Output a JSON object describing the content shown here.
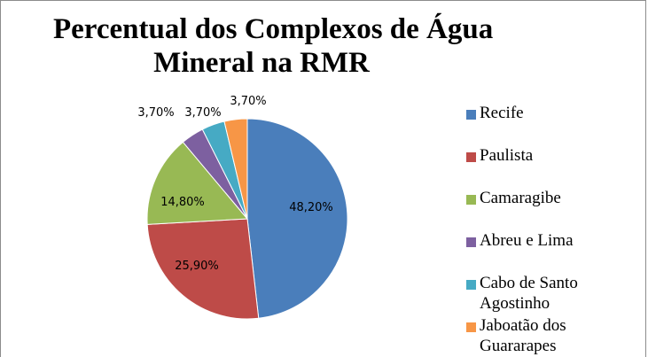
{
  "chart_data": {
    "type": "pie",
    "title": "Percentual dos Complexos de Água Mineral na RMR",
    "title_lines": [
      "Percentual dos Complexos de Água",
      "Mineral na RMR"
    ],
    "categories": [
      "Recife",
      "Paulista",
      "Camaragibe",
      "Abreu e Lima",
      "Cabo de Santo Agostinho",
      "Jaboatão dos Guararapes"
    ],
    "legend_lines": [
      [
        "Recife"
      ],
      [
        "Paulista"
      ],
      [
        "Camaragibe"
      ],
      [
        "Abreu e Lima"
      ],
      [
        "Cabo de Santo",
        "Agostinho"
      ],
      [
        "Jaboatão dos",
        "Guararapes"
      ]
    ],
    "values": [
      48.2,
      25.9,
      14.8,
      3.7,
      3.7,
      3.7
    ],
    "data_labels": [
      "48,20%",
      "25,90%",
      "14,80%",
      "3,70%",
      "3,70%",
      "3,70%"
    ],
    "colors": [
      "#4a7ebb",
      "#be4b48",
      "#98b954",
      "#7d60a0",
      "#46aac4",
      "#f79646"
    ],
    "legend_position": "right"
  }
}
